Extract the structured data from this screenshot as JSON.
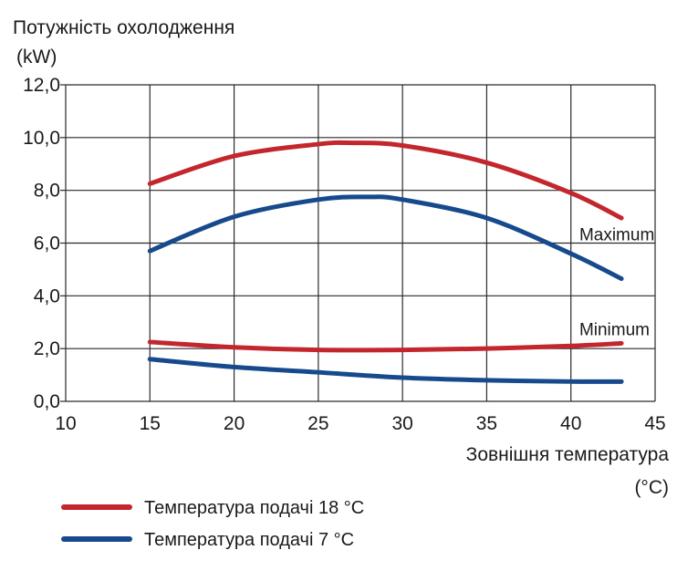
{
  "chart_data": {
    "type": "line",
    "ylabel_line1": "Потужність охолодження",
    "ylabel_line2": "(kW)",
    "xlabel_line1": "Зовнішня температура",
    "xlabel_line2": "(°C)",
    "xlim": [
      10,
      45
    ],
    "ylim": [
      0,
      12
    ],
    "x_ticks": [
      10,
      15,
      20,
      25,
      30,
      35,
      40,
      45
    ],
    "y_ticks": [
      0,
      2,
      4,
      6,
      8,
      10,
      12
    ],
    "y_tick_labels": [
      "0,0",
      "2,0",
      "4,0",
      "6,0",
      "8,0",
      "10,0",
      "12,0"
    ],
    "grid": true,
    "legend_position": "bottom-left",
    "annotations": [
      {
        "text": "Maximum",
        "x": 40.5,
        "y": 6.1
      },
      {
        "text": "Minimum",
        "x": 40.5,
        "y": 2.5
      }
    ],
    "legend": [
      {
        "label": "Температура подачі 18 °C",
        "color": "#c3262d"
      },
      {
        "label": "Температура подачі 7 °C",
        "color": "#174a8c"
      }
    ],
    "series": [
      {
        "group": "max",
        "color": "#c3262d",
        "x": [
          15,
          20,
          25,
          27,
          30,
          35,
          40,
          43
        ],
        "y": [
          8.25,
          9.3,
          9.75,
          9.8,
          9.7,
          9.05,
          7.9,
          6.95
        ]
      },
      {
        "group": "max",
        "color": "#174a8c",
        "x": [
          15,
          20,
          25,
          28,
          30,
          35,
          40,
          43
        ],
        "y": [
          5.7,
          7.0,
          7.65,
          7.75,
          7.65,
          6.95,
          5.6,
          4.65
        ]
      },
      {
        "group": "min",
        "color": "#c3262d",
        "x": [
          15,
          20,
          25,
          30,
          35,
          40,
          43
        ],
        "y": [
          2.25,
          2.05,
          1.95,
          1.95,
          2.0,
          2.1,
          2.2
        ]
      },
      {
        "group": "min",
        "color": "#174a8c",
        "x": [
          15,
          20,
          25,
          30,
          35,
          40,
          43
        ],
        "y": [
          1.6,
          1.3,
          1.1,
          0.9,
          0.8,
          0.75,
          0.75
        ]
      }
    ]
  }
}
